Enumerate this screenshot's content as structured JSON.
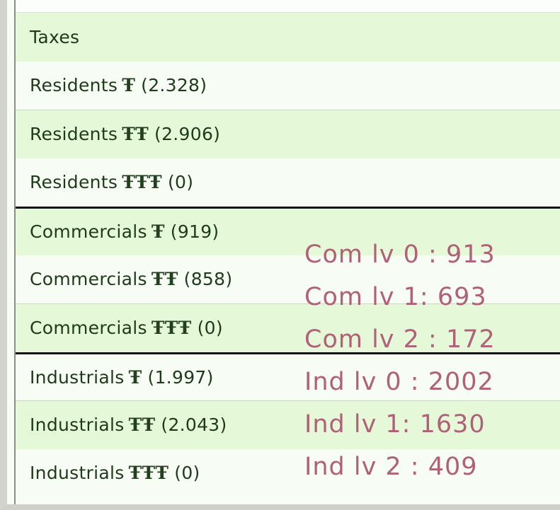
{
  "taxes_header": "Taxes",
  "rows": [
    {
      "category": "Residents",
      "tier": "Ŧ",
      "count": "(2.328)"
    },
    {
      "category": "Residents",
      "tier": "ŦŦ",
      "count": "(2.906)"
    },
    {
      "category": "Residents",
      "tier": "ŦŦŦ",
      "count": "(0)"
    },
    {
      "category": "Commercials",
      "tier": "Ŧ",
      "count": "(919)"
    },
    {
      "category": "Commercials",
      "tier": "ŦŦ",
      "count": "(858)"
    },
    {
      "category": "Commercials",
      "tier": "ŦŦŦ",
      "count": "(0)"
    },
    {
      "category": "Industrials",
      "tier": "Ŧ",
      "count": "(1.997)"
    },
    {
      "category": "Industrials",
      "tier": "ŦŦ",
      "count": "(2.043)"
    },
    {
      "category": "Industrials",
      "tier": "ŦŦŦ",
      "count": "(0)"
    }
  ],
  "annotations": [
    "Com lv 0 : 913",
    "Com lv 1: 693",
    "Com lv 2 : 172",
    "Ind lv 0 : 2002",
    "Ind lv 1: 1630",
    "Ind lv 2 : 409"
  ],
  "colors": {
    "row_shade": "#e5f9d9",
    "row_light": "#f7fdf5",
    "text": "#1f3a1a",
    "annotation": "#b06078",
    "group_separator": "#141414"
  }
}
